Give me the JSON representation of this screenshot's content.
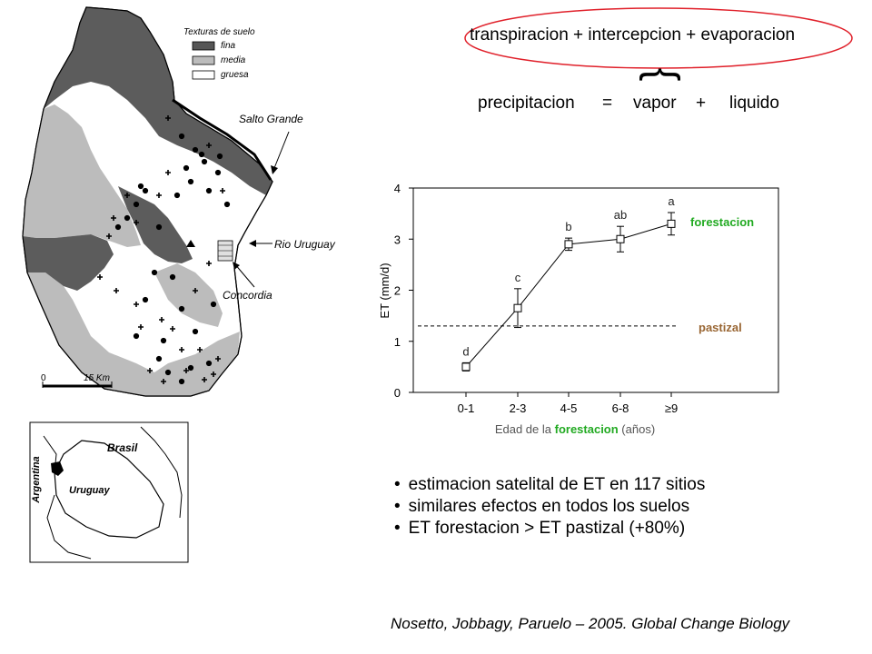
{
  "map": {
    "legend": {
      "title": "Texturas de suelo",
      "items": [
        {
          "label": "fina",
          "color": "#555555"
        },
        {
          "label": "media",
          "color": "#bcbcbc"
        },
        {
          "label": "gruesa",
          "color": "#ffffff"
        }
      ]
    },
    "labels": {
      "salto_grande": "Salto Grande",
      "rio_uruguay": "Rio Uruguay",
      "concordia": "Concordia"
    },
    "scale": {
      "zero": "0",
      "value": "15 Km"
    },
    "inset": {
      "brasil": "Brasil",
      "argentina": "Argentina",
      "uruguay": "Uruguay"
    }
  },
  "equation": {
    "oval_text": "transpiracion + intercepcion + evaporacion",
    "brace": "}",
    "terms": [
      "precipitacion",
      "=",
      "vapor",
      "+",
      "liquido"
    ]
  },
  "chart_data": {
    "type": "line",
    "categories": [
      "0-1",
      "2-3",
      "4-5",
      "6-8",
      "≥9"
    ],
    "series": [
      {
        "name": "forestacion",
        "values": [
          0.5,
          1.65,
          2.9,
          3.0,
          3.3
        ],
        "errors": [
          0.08,
          0.38,
          0.12,
          0.25,
          0.22
        ],
        "letters": [
          "d",
          "c",
          "b",
          "ab",
          "a"
        ],
        "color": "#22aa22"
      }
    ],
    "reference": {
      "name": "pastizal",
      "value": 1.3,
      "color": "#996633"
    },
    "ylabel": "ET (mm/d)",
    "xlabel_parts": [
      "Edad de la ",
      "forestacion",
      " (años)"
    ],
    "yticks": [
      0,
      1,
      2,
      3,
      4
    ],
    "ylim": [
      0,
      4
    ],
    "grid": false
  },
  "bullets": [
    "estimacion satelital de ET en 117 sitios",
    "similares efectos en todos los suelos",
    "ET forestacion > ET pastizal (+80%)"
  ],
  "citation": "Nosetto, Jobbagy, Paruelo – 2005. Global Change Biology"
}
